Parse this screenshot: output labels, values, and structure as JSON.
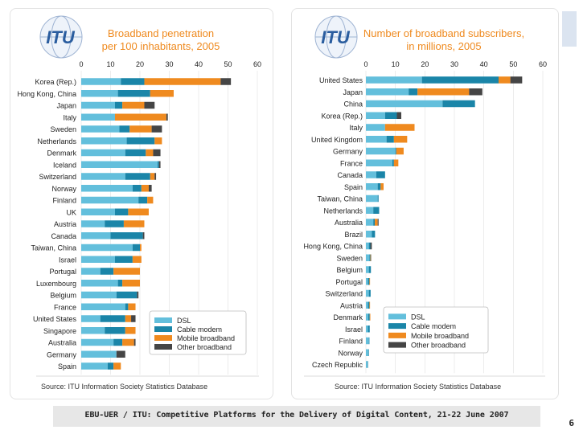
{
  "colors": {
    "DSL": "#63bfdc",
    "Cable modem": "#1a85a8",
    "Mobile broadband": "#ef8a1f",
    "Other broadband": "#454545",
    "title": "#ef8a1f",
    "logo": "#2a5d9f"
  },
  "logo_text": "ITU",
  "legend": [
    "DSL",
    "Cable modem",
    "Mobile broadband",
    "Other broadband"
  ],
  "footer": "EBU-UER / ITU: Competitive Platforms for the Delivery of Digital Content, 21-22 June 2007",
  "page_number": "6",
  "chart_data": [
    {
      "type": "bar",
      "orientation": "horizontal",
      "stacked": true,
      "title": "Broadband penetration per 100 inhabitants, 2005",
      "title_lines": [
        "Broadband penetration",
        "per 100 inhabitants, 2005"
      ],
      "source": "Source: ITU Information Society Statistics Database",
      "xlim": [
        0,
        60
      ],
      "xticks": [
        0,
        10,
        20,
        30,
        40,
        50,
        60
      ],
      "categories": [
        "Korea (Rep.)",
        "Hong Kong, China",
        "Japan",
        "Italy",
        "Sweden",
        "Netherlands",
        "Denmark",
        "Iceland",
        "Switzerland",
        "Norway",
        "Finland",
        "UK",
        "Austria",
        "Canada",
        "Taiwan, China",
        "Israel",
        "Portugal",
        "Luxembourg",
        "Belgium",
        "France",
        "United States",
        "Singapore",
        "Australia",
        "Germany",
        "Spain"
      ],
      "series": [
        {
          "name": "DSL",
          "values": [
            13.5,
            12.5,
            11.5,
            11.5,
            13,
            15.5,
            15,
            26,
            15,
            17.5,
            19.5,
            11.5,
            8,
            10,
            17.5,
            11.5,
            6.5,
            12.5,
            12,
            15,
            6.5,
            8,
            11,
            12,
            9
          ]
        },
        {
          "name": "Cable modem",
          "values": [
            8,
            11,
            2.5,
            0,
            3.5,
            9.5,
            7,
            0.5,
            8.5,
            3,
            3,
            4.5,
            6.5,
            11,
            2.5,
            6,
            4.5,
            1.5,
            7,
            1,
            8.5,
            7,
            3,
            0,
            2
          ]
        },
        {
          "name": "Mobile broadband",
          "values": [
            26,
            8,
            7.5,
            17.5,
            7.5,
            2.5,
            2.5,
            0,
            1.5,
            2.5,
            2,
            7,
            7,
            0,
            0.5,
            3,
            9,
            6,
            0,
            2.5,
            2,
            3.5,
            4,
            0,
            2.5
          ]
        },
        {
          "name": "Other broadband",
          "values": [
            3.5,
            0,
            3.5,
            0.5,
            3.5,
            0,
            2.5,
            0.5,
            0.5,
            1,
            0,
            0,
            0,
            0.5,
            0,
            0,
            0,
            0,
            0.5,
            0,
            1.5,
            0,
            0.5,
            3,
            0
          ]
        }
      ]
    },
    {
      "type": "bar",
      "orientation": "horizontal",
      "stacked": true,
      "title": "Number of broadband subscribers, in millions, 2005",
      "title_lines": [
        "Number of broadband subscribers,",
        "in millions, 2005"
      ],
      "source": "Source: ITU Information Society Statistics Database",
      "xlim": [
        0,
        60
      ],
      "xticks": [
        0,
        10,
        20,
        30,
        40,
        50,
        60
      ],
      "categories": [
        "United States",
        "Japan",
        "China",
        "Korea (Rep.)",
        "Italy",
        "United Kingdom",
        "Germany",
        "France",
        "Canada",
        "Spain",
        "Taiwan, China",
        "Netherlands",
        "Australia",
        "Brazil",
        "Hong Kong, China",
        "Sweden",
        "Belgium",
        "Portugal",
        "Switzerland",
        "Austria",
        "Denmark",
        "Israel",
        "Finland",
        "Norway",
        "Czech Republic"
      ],
      "series": [
        {
          "name": "DSL",
          "values": [
            19,
            14.5,
            26,
            6.5,
            6.5,
            7,
            10,
            9,
            3.5,
            4,
            4,
            2.5,
            2.5,
            2,
            1,
            1.2,
            1,
            0.7,
            1,
            0.7,
            0.8,
            0.7,
            1,
            0.8,
            0.5
          ]
        },
        {
          "name": "Cable modem",
          "values": [
            26,
            3,
            11,
            4,
            0,
            2.5,
            0.3,
            0.5,
            3,
            1,
            0.3,
            2,
            0.5,
            1.1,
            0.5,
            0.3,
            0.7,
            0.5,
            0.6,
            0.5,
            0.5,
            0.6,
            0.2,
            0.2,
            0.2
          ]
        },
        {
          "name": "Mobile broadband",
          "values": [
            4,
            17.5,
            0,
            0,
            10,
            4.5,
            2.5,
            1.5,
            0,
            1,
            0,
            0,
            1,
            0,
            0,
            0.2,
            0,
            0.2,
            0,
            0.2,
            0.2,
            0,
            0,
            0,
            0
          ]
        },
        {
          "name": "Other broadband",
          "values": [
            4,
            4.5,
            0,
            1.5,
            0,
            0,
            0,
            0,
            0,
            0,
            0,
            0,
            0.3,
            0,
            0.5,
            0.1,
            0,
            0,
            0,
            0,
            0,
            0,
            0,
            0,
            0
          ]
        }
      ]
    }
  ]
}
